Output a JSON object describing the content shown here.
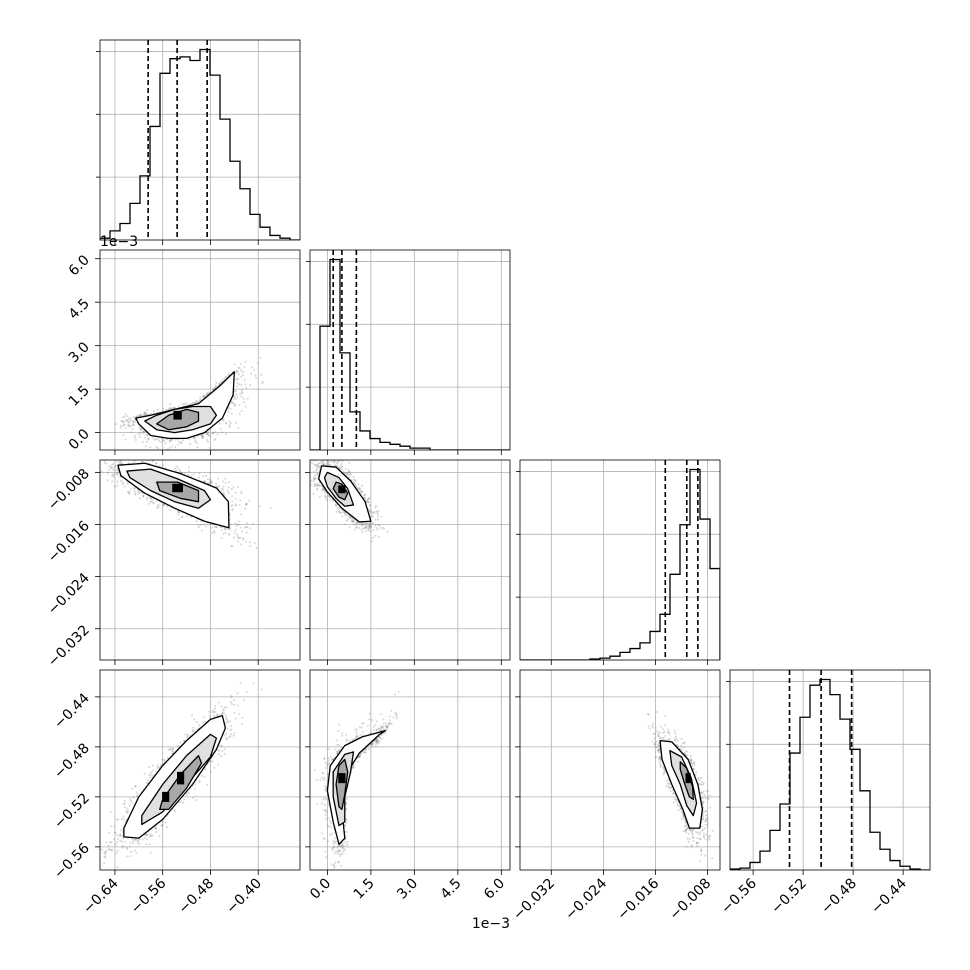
{
  "chart_data": {
    "type": "corner",
    "parameters": [
      {
        "range": [
          -0.665,
          -0.33
        ],
        "ticks": [
          -0.64,
          -0.56,
          -0.48,
          -0.4
        ],
        "tick_labels": [
          "−0.64",
          "−0.56",
          "−0.48",
          "−0.40"
        ],
        "offset_label": ""
      },
      {
        "range": [
          -0.0006,
          0.0063
        ],
        "ticks": [
          0.0,
          0.0015,
          0.003,
          0.0045,
          0.006
        ],
        "tick_labels": [
          "0.0",
          "1.5",
          "3.0",
          "4.5",
          "6.0"
        ],
        "offset_label": "1e−3"
      },
      {
        "range": [
          -0.0368,
          -0.0061
        ],
        "ticks": [
          -0.032,
          -0.024,
          -0.016,
          -0.008
        ],
        "tick_labels": [
          "−0.032",
          "−0.024",
          "−0.016",
          "−0.008"
        ],
        "offset_label": ""
      },
      {
        "range": [
          -0.5785,
          -0.4185
        ],
        "ticks": [
          -0.56,
          -0.52,
          -0.48,
          -0.44
        ],
        "tick_labels": [
          "−0.56",
          "−0.52",
          "−0.48",
          "−0.44"
        ],
        "offset_label": ""
      }
    ],
    "histograms": [
      {
        "edges_start": -0.665,
        "bin_width": 0.01675,
        "counts": [
          0.01,
          0.05,
          0.09,
          0.2,
          0.35,
          0.62,
          0.91,
          0.99,
          1.0,
          0.98,
          1.04,
          0.9,
          0.66,
          0.43,
          0.28,
          0.14,
          0.07,
          0.025,
          0.01,
          0.0
        ],
        "quantiles": [
          -0.5844,
          -0.5358,
          -0.4855
        ]
      },
      {
        "edges_start": -0.0006,
        "bin_width": 0.000345,
        "counts": [
          0.0,
          0.65,
          1.0,
          0.51,
          0.2,
          0.1,
          0.06,
          0.04,
          0.03,
          0.02,
          0.01,
          0.01,
          0.0,
          0.0,
          0.0,
          0.0,
          0.0,
          0.0,
          0.0,
          0.0
        ],
        "quantiles": [
          0.0002,
          0.0005,
          0.001
        ]
      },
      {
        "edges_start": -0.0368,
        "bin_width": 0.001535,
        "counts": [
          0.0,
          0.0,
          0.0,
          0.0,
          0.0,
          0.0,
          0.0,
          0.005,
          0.01,
          0.02,
          0.04,
          0.06,
          0.09,
          0.15,
          0.24,
          0.45,
          0.71,
          1.0,
          0.74,
          0.48
        ],
        "quantiles": [
          -0.0145,
          -0.0112,
          -0.0095
        ]
      },
      {
        "edges_start": -0.5785,
        "bin_width": 0.008,
        "counts": [
          0.005,
          0.01,
          0.04,
          0.1,
          0.21,
          0.35,
          0.62,
          0.81,
          0.98,
          1.01,
          0.93,
          0.8,
          0.64,
          0.42,
          0.2,
          0.11,
          0.05,
          0.02,
          0.005,
          0.0
        ],
        "quantiles": [
          -0.5309,
          -0.5056,
          -0.4812
        ]
      }
    ],
    "pairs": [
      {
        "row": 1,
        "col": 0,
        "contours": [
          [
            [
              -0.6,
              0.0003
            ],
            [
              -0.58,
              -0.0001
            ],
            [
              -0.55,
              -0.0002
            ],
            [
              -0.52,
              -0.0002
            ],
            [
              -0.49,
              0.0
            ],
            [
              -0.46,
              0.0005
            ],
            [
              -0.442,
              0.0013
            ],
            [
              -0.44,
              0.0021
            ],
            [
              -0.465,
              0.0016
            ],
            [
              -0.5,
              0.001
            ],
            [
              -0.54,
              0.0008
            ],
            [
              -0.58,
              0.0006
            ],
            [
              -0.605,
              0.0005
            ]
          ],
          [
            [
              -0.59,
              0.0004
            ],
            [
              -0.57,
              0.0001
            ],
            [
              -0.54,
              0.0
            ],
            [
              -0.51,
              0.0001
            ],
            [
              -0.48,
              0.0003
            ],
            [
              -0.47,
              0.0006
            ],
            [
              -0.48,
              0.0009
            ],
            [
              -0.51,
              0.0009
            ],
            [
              -0.54,
              0.0008
            ],
            [
              -0.57,
              0.0006
            ]
          ],
          [
            [
              -0.57,
              0.0003
            ],
            [
              -0.55,
              0.0001
            ],
            [
              -0.52,
              0.0002
            ],
            [
              -0.5,
              0.0004
            ],
            [
              -0.5,
              0.0007
            ],
            [
              -0.52,
              0.0008
            ],
            [
              -0.55,
              0.0006
            ]
          ]
        ],
        "hotspots": [
          {
            "x": -0.535,
            "y": 0.0006,
            "w": 0.014,
            "h": 0.0003
          }
        ]
      },
      {
        "row": 2,
        "col": 0,
        "contours": [
          [
            [
              -0.635,
              -0.0069
            ],
            [
              -0.59,
              -0.0066
            ],
            [
              -0.53,
              -0.0082
            ],
            [
              -0.47,
              -0.0104
            ],
            [
              -0.45,
              -0.0125
            ],
            [
              -0.449,
              -0.0165
            ],
            [
              -0.49,
              -0.0155
            ],
            [
              -0.54,
              -0.0135
            ],
            [
              -0.59,
              -0.0112
            ],
            [
              -0.63,
              -0.0085
            ]
          ],
          [
            [
              -0.62,
              -0.0078
            ],
            [
              -0.58,
              -0.0075
            ],
            [
              -0.535,
              -0.009
            ],
            [
              -0.49,
              -0.0108
            ],
            [
              -0.48,
              -0.0122
            ],
            [
              -0.5,
              -0.0135
            ],
            [
              -0.54,
              -0.0125
            ],
            [
              -0.58,
              -0.0108
            ],
            [
              -0.615,
              -0.0088
            ]
          ],
          [
            [
              -0.57,
              -0.0095
            ],
            [
              -0.535,
              -0.0095
            ],
            [
              -0.5,
              -0.0108
            ],
            [
              -0.5,
              -0.0125
            ],
            [
              -0.53,
              -0.012
            ],
            [
              -0.565,
              -0.0108
            ]
          ]
        ],
        "hotspots": [
          {
            "x": -0.535,
            "y": -0.0104,
            "w": 0.018,
            "h": 0.0013
          }
        ]
      },
      {
        "row": 2,
        "col": 1,
        "contours": [
          [
            [
              -0.0002,
              -0.007
            ],
            [
              0.0003,
              -0.0072
            ],
            [
              0.0008,
              -0.0093
            ],
            [
              0.0013,
              -0.0125
            ],
            [
              0.0015,
              -0.0155
            ],
            [
              0.0011,
              -0.0156
            ],
            [
              0.0005,
              -0.0135
            ],
            [
              0.0,
              -0.011
            ],
            [
              -0.0003,
              -0.009
            ]
          ],
          [
            [
              0.0,
              -0.008
            ],
            [
              0.0004,
              -0.0088
            ],
            [
              0.0007,
              -0.0105
            ],
            [
              0.0009,
              -0.013
            ],
            [
              0.0006,
              -0.0132
            ],
            [
              0.0003,
              -0.012
            ],
            [
              0.0,
              -0.0102
            ],
            [
              -0.0001,
              -0.0088
            ]
          ],
          [
            [
              0.0003,
              -0.0095
            ],
            [
              0.0005,
              -0.0098
            ],
            [
              0.0007,
              -0.0112
            ],
            [
              0.0006,
              -0.0122
            ],
            [
              0.0004,
              -0.0118
            ],
            [
              0.0002,
              -0.0105
            ]
          ]
        ],
        "hotspots": [
          {
            "x": 0.0005,
            "y": -0.0106,
            "w": 0.00025,
            "h": 0.0012
          }
        ]
      },
      {
        "row": 3,
        "col": 0,
        "contours": [
          [
            [
              -0.625,
              -0.545
            ],
            [
              -0.6,
              -0.52
            ],
            [
              -0.56,
              -0.495
            ],
            [
              -0.52,
              -0.475
            ],
            [
              -0.48,
              -0.458
            ],
            [
              -0.46,
              -0.455
            ],
            [
              -0.455,
              -0.465
            ],
            [
              -0.47,
              -0.482
            ],
            [
              -0.51,
              -0.51
            ],
            [
              -0.56,
              -0.538
            ],
            [
              -0.6,
              -0.553
            ],
            [
              -0.625,
              -0.552
            ]
          ],
          [
            [
              -0.595,
              -0.535
            ],
            [
              -0.56,
              -0.51
            ],
            [
              -0.52,
              -0.487
            ],
            [
              -0.48,
              -0.47
            ],
            [
              -0.47,
              -0.473
            ],
            [
              -0.48,
              -0.488
            ],
            [
              -0.52,
              -0.51
            ],
            [
              -0.56,
              -0.532
            ],
            [
              -0.595,
              -0.542
            ]
          ],
          [
            [
              -0.56,
              -0.522
            ],
            [
              -0.53,
              -0.502
            ],
            [
              -0.5,
              -0.487
            ],
            [
              -0.495,
              -0.493
            ],
            [
              -0.52,
              -0.513
            ],
            [
              -0.55,
              -0.53
            ],
            [
              -0.565,
              -0.53
            ]
          ]
        ],
        "hotspots": [
          {
            "x": -0.53,
            "y": -0.505,
            "w": 0.012,
            "h": 0.01
          },
          {
            "x": -0.555,
            "y": -0.52,
            "w": 0.012,
            "h": 0.008
          }
        ]
      },
      {
        "row": 3,
        "col": 1,
        "contours": [
          [
            [
              0.0004,
              -0.558
            ],
            [
              0.0002,
              -0.54
            ],
            [
              0.0,
              -0.515
            ],
            [
              0.0001,
              -0.495
            ],
            [
              0.0006,
              -0.479
            ],
            [
              0.0012,
              -0.472
            ],
            [
              0.002,
              -0.467
            ],
            [
              0.0018,
              -0.47
            ],
            [
              0.0011,
              -0.485
            ],
            [
              0.0007,
              -0.5
            ],
            [
              0.0005,
              -0.53
            ],
            [
              0.0006,
              -0.553
            ]
          ],
          [
            [
              0.0004,
              -0.543
            ],
            [
              0.0002,
              -0.52
            ],
            [
              0.0002,
              -0.5
            ],
            [
              0.0006,
              -0.486
            ],
            [
              0.0009,
              -0.484
            ],
            [
              0.0008,
              -0.5
            ],
            [
              0.0006,
              -0.52
            ],
            [
              0.0006,
              -0.54
            ]
          ],
          [
            [
              0.0004,
              -0.528
            ],
            [
              0.0003,
              -0.51
            ],
            [
              0.0004,
              -0.495
            ],
            [
              0.0006,
              -0.49
            ],
            [
              0.0007,
              -0.5
            ],
            [
              0.0006,
              -0.518
            ],
            [
              0.0005,
              -0.53
            ]
          ]
        ],
        "hotspots": [
          {
            "x": 0.0005,
            "y": -0.505,
            "w": 0.00025,
            "h": 0.008
          }
        ]
      },
      {
        "row": 3,
        "col": 2,
        "contours": [
          [
            [
              -0.0153,
              -0.475
            ],
            [
              -0.0135,
              -0.476
            ],
            [
              -0.011,
              -0.49
            ],
            [
              -0.0095,
              -0.51
            ],
            [
              -0.0088,
              -0.53
            ],
            [
              -0.0092,
              -0.545
            ],
            [
              -0.0108,
              -0.545
            ],
            [
              -0.0118,
              -0.53
            ],
            [
              -0.0135,
              -0.51
            ],
            [
              -0.015,
              -0.49
            ]
          ],
          [
            [
              -0.0138,
              -0.483
            ],
            [
              -0.012,
              -0.488
            ],
            [
              -0.0105,
              -0.505
            ],
            [
              -0.0097,
              -0.525
            ],
            [
              -0.0102,
              -0.535
            ],
            [
              -0.0112,
              -0.527
            ],
            [
              -0.0122,
              -0.51
            ],
            [
              -0.0135,
              -0.495
            ]
          ],
          [
            [
              -0.0122,
              -0.492
            ],
            [
              -0.0112,
              -0.497
            ],
            [
              -0.0103,
              -0.512
            ],
            [
              -0.0102,
              -0.522
            ],
            [
              -0.0108,
              -0.52
            ],
            [
              -0.0115,
              -0.51
            ],
            [
              -0.0122,
              -0.498
            ]
          ]
        ],
        "hotspots": [
          {
            "x": -0.011,
            "y": -0.505,
            "w": 0.0008,
            "h": 0.008
          }
        ]
      }
    ]
  }
}
